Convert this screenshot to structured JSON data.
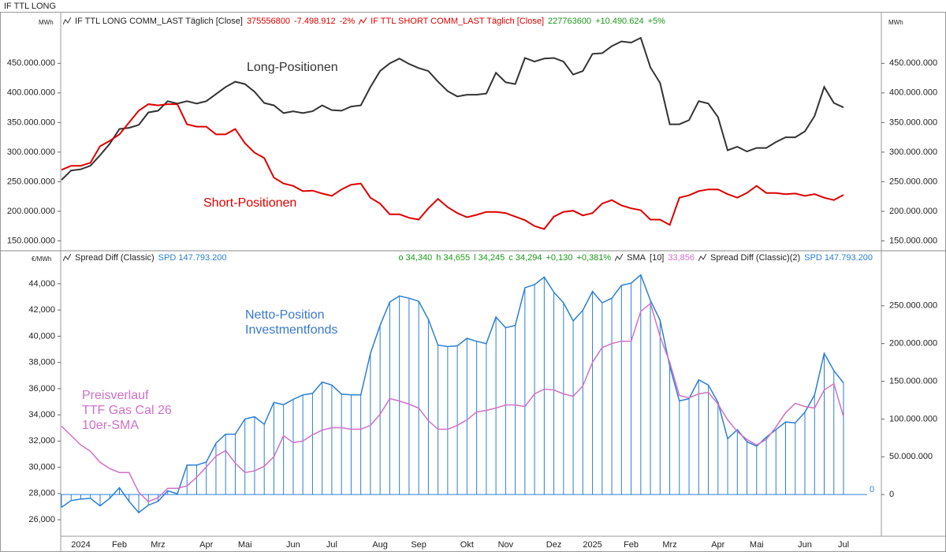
{
  "header": {
    "title": "IF TTL LONG"
  },
  "chart_data": [
    {
      "type": "line",
      "unit": "MWh",
      "y2unit": "MWh",
      "ylim": [
        136000000,
        537000000
      ],
      "yticks": [
        {
          "value": 150000000,
          "label": "150.000.000"
        },
        {
          "value": 200000000,
          "label": "200.000.000"
        },
        {
          "value": 250000000,
          "label": "250.000.000"
        },
        {
          "value": 300000000,
          "label": "300.000.000"
        },
        {
          "value": 350000000,
          "label": "350.000.000"
        },
        {
          "value": 400000000,
          "label": "400.000.000"
        },
        {
          "value": 450000000,
          "label": "450.000.000"
        }
      ],
      "y2lim": [
        136000000,
        537000000
      ],
      "y2ticks": [
        {
          "value": 150000000,
          "label": "150.000.000"
        },
        {
          "value": 200000000,
          "label": "200.000.000"
        },
        {
          "value": 250000000,
          "label": "250.000.000"
        },
        {
          "value": 300000000,
          "label": "300.000.000"
        },
        {
          "value": 350000000,
          "label": "350.000.000"
        },
        {
          "value": 400000000,
          "label": "400.000.000"
        },
        {
          "value": 450000000,
          "label": "450.000.000"
        }
      ],
      "series": [
        {
          "name": "IF TTL LONG COMM_LAST Täglich [Close]",
          "last": "375556800",
          "change": "-7.498.912",
          "change_pct": "-2%",
          "color": "#333333",
          "values": [
            253000000,
            269000000,
            271000000,
            277000000,
            295000000,
            314000000,
            339000000,
            341000000,
            346000000,
            367000000,
            370000000,
            386000000,
            382000000,
            386000000,
            382000000,
            386000000,
            398000000,
            410000000,
            419000000,
            415000000,
            402000000,
            383000000,
            379000000,
            366000000,
            369000000,
            366000000,
            369000000,
            379000000,
            371000000,
            370000000,
            377000000,
            379000000,
            410000000,
            437000000,
            450000000,
            458000000,
            449000000,
            442000000,
            437000000,
            419000000,
            403000000,
            394000000,
            397000000,
            397000000,
            399000000,
            434000000,
            418000000,
            415000000,
            459000000,
            453000000,
            458000000,
            459000000,
            453000000,
            431000000,
            437000000,
            466000000,
            467000000,
            479000000,
            487000000,
            485000000,
            493000000,
            443000000,
            417000000,
            347000000,
            347000000,
            354000000,
            386000000,
            382000000,
            359000000,
            303000000,
            309000000,
            301000000,
            307000000,
            307000000,
            317000000,
            325000000,
            325000000,
            335000000,
            361000000,
            410000000,
            383000000,
            375556800
          ]
        },
        {
          "name": "IF TTL SHORT COMM_LAST Täglich [Close]",
          "last": "227763600",
          "change": "+10.490.624",
          "change_pct": "+5%",
          "color": "#dd0000",
          "values": [
            270000000,
            277000000,
            277000000,
            282000000,
            310000000,
            319000000,
            330000000,
            350000000,
            370000000,
            381000000,
            379000000,
            381000000,
            381000000,
            347000000,
            343000000,
            343000000,
            330000000,
            330000000,
            339000000,
            315000000,
            299000000,
            290000000,
            257000000,
            247000000,
            243000000,
            234000000,
            235000000,
            230000000,
            226000000,
            237000000,
            245000000,
            247000000,
            223000000,
            213000000,
            195000000,
            195000000,
            189000000,
            186000000,
            205000000,
            221000000,
            207000000,
            197000000,
            190000000,
            194000000,
            199000000,
            199000000,
            197000000,
            191000000,
            185000000,
            175000000,
            170000000,
            191000000,
            199000000,
            201000000,
            193000000,
            197000000,
            213000000,
            219000000,
            210000000,
            205000000,
            202000000,
            186000000,
            186000000,
            177000000,
            223000000,
            227000000,
            234000000,
            237000000,
            237000000,
            229000000,
            223000000,
            231000000,
            243000000,
            231000000,
            231000000,
            229000000,
            230000000,
            226000000,
            229000000,
            223000000,
            219000000,
            227763600
          ]
        }
      ],
      "annotations": [
        {
          "lines": [
            "Long-Positionen"
          ],
          "color": "#333333"
        },
        {
          "lines": [
            "Short-Positionen"
          ],
          "color": "#dd0000"
        }
      ]
    },
    {
      "type": "combo",
      "unit": "€/MWh",
      "categories": [
        null,
        null,
        "2024",
        null,
        null,
        null,
        "Feb",
        null,
        null,
        null,
        "Mrz",
        null,
        null,
        null,
        null,
        "Apr",
        null,
        null,
        null,
        "Mai",
        null,
        null,
        null,
        null,
        "Jun",
        null,
        null,
        null,
        "Jul",
        null,
        null,
        null,
        null,
        "Aug",
        null,
        null,
        null,
        "Sep",
        null,
        null,
        null,
        null,
        "Okt",
        null,
        null,
        null,
        "Nov",
        null,
        null,
        null,
        null,
        "Dez",
        null,
        null,
        null,
        "2025",
        null,
        null,
        null,
        "Feb",
        null,
        null,
        null,
        "Mrz",
        null,
        null,
        null,
        null,
        "Apr",
        null,
        null,
        null,
        "Mai",
        null,
        null,
        null,
        null,
        "Jun",
        null,
        null,
        null,
        "Jul"
      ],
      "ylim": [
        24740,
        46400
      ],
      "yticks": [
        {
          "value": 26000,
          "label": "26,000"
        },
        {
          "value": 28000,
          "label": "28,000"
        },
        {
          "value": 30000,
          "label": "30,000"
        },
        {
          "value": 32000,
          "label": "32,000"
        },
        {
          "value": 34000,
          "label": "34,000"
        },
        {
          "value": 36000,
          "label": "36,000"
        },
        {
          "value": 38000,
          "label": "38,000"
        },
        {
          "value": 40000,
          "label": "40,000"
        },
        {
          "value": 42000,
          "label": "42,000"
        },
        {
          "value": 44000,
          "label": "44,000"
        }
      ],
      "y2lim": [
        -55200000,
        320800000
      ],
      "y2ticks": [
        0,
        {
          "value": 50000000,
          "label": "50.000.000"
        },
        {
          "value": 100000000,
          "label": "100.000.000"
        },
        {
          "value": 150000000,
          "label": "150.000.000"
        },
        {
          "value": 200000000,
          "label": "200.000.000"
        },
        {
          "value": 250000000,
          "label": "250.000.000"
        }
      ],
      "baseline_label": 0,
      "ohlc": [
        "o 34,340",
        "h 34,655",
        "l 34,245",
        "c 34,294",
        "+0,130",
        "+0,381%"
      ],
      "series": [
        {
          "name": "Spread Diff (Classic)",
          "last": "SPD 147.793.200",
          "type": "bar",
          "axis": "y2",
          "color": "#2a7fd4",
          "values": [
            -17000000,
            -8000000,
            -6000000,
            -5000000,
            -15000000,
            -5000000,
            9000000,
            -9000000,
            -24000000,
            -14000000,
            -9000000,
            5000000,
            1000000,
            39000000,
            39000000,
            43000000,
            68000000,
            80000000,
            80000000,
            100000000,
            103000000,
            93000000,
            122000000,
            119000000,
            126000000,
            132000000,
            134000000,
            149000000,
            145000000,
            133000000,
            132000000,
            132000000,
            187000000,
            224000000,
            255000000,
            263000000,
            260000000,
            256000000,
            232000000,
            198000000,
            196000000,
            197000000,
            207000000,
            203000000,
            200000000,
            235000000,
            221000000,
            224000000,
            274000000,
            278000000,
            288000000,
            268000000,
            254000000,
            230000000,
            244000000,
            269000000,
            254000000,
            260000000,
            277000000,
            280000000,
            291000000,
            257000000,
            231000000,
            170000000,
            124000000,
            127000000,
            152000000,
            145000000,
            122000000,
            74000000,
            86000000,
            70000000,
            64000000,
            76000000,
            86000000,
            96000000,
            95000000,
            109000000,
            132000000,
            187000000,
            164000000,
            147793200
          ]
        },
        {
          "name": "SMA",
          "param": "[10]",
          "last": "33,856",
          "type": "line",
          "axis": "y",
          "color": "#d070c8",
          "values": [
            33140,
            32420,
            31700,
            31220,
            30380,
            29900,
            29600,
            29600,
            28100,
            27380,
            27680,
            28400,
            28400,
            28580,
            29240,
            30020,
            30860,
            31280,
            30320,
            29600,
            29720,
            30080,
            30800,
            32420,
            31880,
            32000,
            32480,
            32840,
            33020,
            33020,
            32900,
            32900,
            33200,
            34040,
            35240,
            35060,
            34820,
            34520,
            33560,
            32900,
            32900,
            33200,
            33620,
            34220,
            34340,
            34520,
            34760,
            34760,
            34640,
            35600,
            35960,
            35900,
            35600,
            35420,
            36200,
            38000,
            39140,
            39440,
            39620,
            39620,
            41900,
            42500,
            39980,
            38000,
            35480,
            35300,
            35600,
            35720,
            34820,
            33620,
            32720,
            32120,
            31700,
            32120,
            33080,
            34160,
            34880,
            34640,
            34520,
            35900,
            36380,
            33856
          ]
        }
      ],
      "extra_legend": {
        "name": "Spread Diff (Classic)(2)",
        "last": "SPD 147.793.200"
      },
      "annotations": [
        {
          "lines": [
            "Netto-Position",
            "Investmentfonds"
          ],
          "color": "#3a78d0"
        },
        {
          "lines": [
            "Preisverlauf",
            "TTF Gas Cal 26",
            "10er-SMA"
          ],
          "color": "#d070c8"
        }
      ]
    }
  ]
}
